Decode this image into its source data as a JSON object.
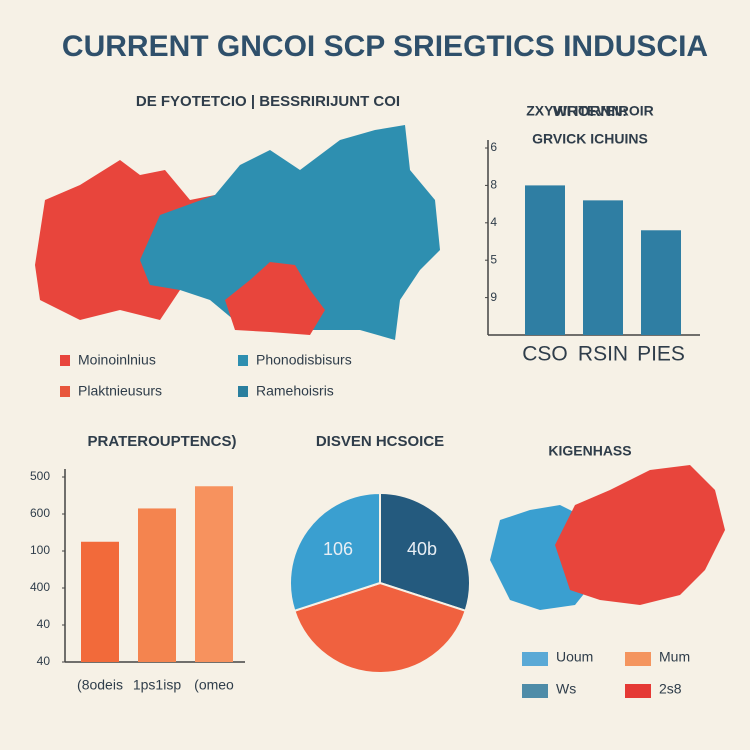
{
  "title": "CURRENT GNCOI SCP SRIEGTICS INDUSCIA",
  "maps": [
    {
      "title": "DE FYOTETCIO | BESSRIRIJUNT COI",
      "legend": [
        {
          "name": "Moinoinlnius",
          "color": "#e8453c"
        },
        {
          "name": "Phonodisbisurs",
          "color": "#2e8fb0"
        },
        {
          "name": "Plaktnieusurs",
          "color": "#e8563c"
        },
        {
          "name": "Ramehoisris",
          "color": "#2a7f9e"
        }
      ]
    },
    {
      "title": "ZXYVII ITEVEIROIR",
      "subtitle": "KIGENHASS",
      "legend": [
        {
          "name": "Uoum",
          "color": "#5aa9d6"
        },
        {
          "name": "Mum",
          "color": "#f4955f"
        },
        {
          "name": "Ws",
          "color": "#4e8ca8"
        },
        {
          "name": "2s8",
          "color": "#e53935"
        }
      ]
    }
  ],
  "chart_data": [
    {
      "type": "bar",
      "title": "WRORNN:",
      "subtitle": "GRVICK ICHUINS",
      "categories": [
        "CSO",
        "RSIN",
        "PIES"
      ],
      "values": [
        4.0,
        3.6,
        2.8
      ],
      "color": "#2f7ea3",
      "ylim": [
        0,
        5
      ],
      "yticks": [
        {
          "value": 1,
          "label": "9"
        },
        {
          "value": 2,
          "label": "5"
        },
        {
          "value": 3,
          "label": "4"
        },
        {
          "value": 4,
          "label": "8"
        },
        {
          "value": 5,
          "label": "6"
        }
      ]
    },
    {
      "type": "bar",
      "title": "PRATEROUPTENCS)",
      "categories": [
        "(8odeis",
        "1ps1isp",
        "(omeo"
      ],
      "values": [
        3.25,
        4.15,
        4.75
      ],
      "colors": [
        "#f26a3a",
        "#f4844f",
        "#f7925e"
      ],
      "ylim": [
        0,
        5
      ],
      "yticks": [
        {
          "value": 0,
          "label": "40"
        },
        {
          "value": 1,
          "label": "40"
        },
        {
          "value": 2,
          "label": "400"
        },
        {
          "value": 3,
          "label": "100"
        },
        {
          "value": 4,
          "label": "600"
        },
        {
          "value": 5,
          "label": "500"
        }
      ]
    },
    {
      "type": "pie",
      "title": "DISVEN HCSOICE",
      "values": [
        30,
        40,
        30
      ],
      "colors": [
        "#245a7e",
        "#f0613f",
        "#3a9fd0"
      ],
      "annotations": [
        "40b",
        "106"
      ]
    }
  ]
}
